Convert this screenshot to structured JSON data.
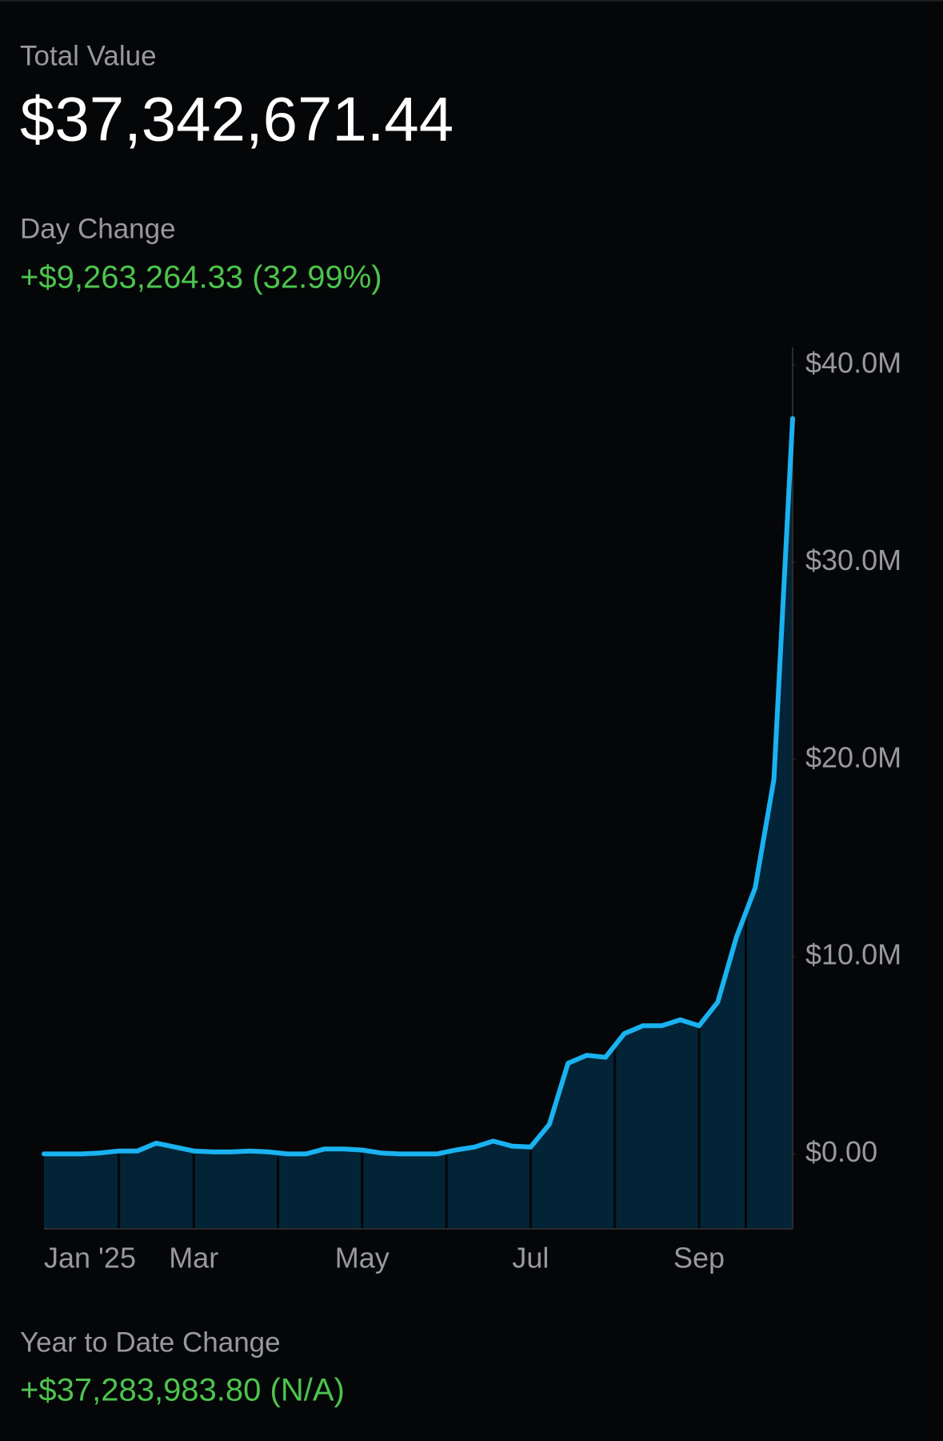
{
  "total_value": {
    "label": "Total Value",
    "value": "$37,342,671.44"
  },
  "day_change": {
    "label": "Day Change",
    "value": "+$9,263,264.33 (32.99%)"
  },
  "ytd_change": {
    "label": "Year to Date Change",
    "value": "+$37,283,983.80 (N/A)"
  },
  "chart_data": {
    "type": "line",
    "color": "#1ab2f0",
    "categories": [
      "Jan '25",
      null,
      null,
      null,
      null,
      null,
      null,
      null,
      "Mar",
      null,
      null,
      null,
      null,
      null,
      null,
      null,
      null,
      "May",
      null,
      null,
      null,
      null,
      null,
      null,
      null,
      null,
      "Jul",
      null,
      null,
      null,
      null,
      null,
      null,
      null,
      null,
      "Sep",
      null,
      null,
      null,
      null,
      null
    ],
    "values": [
      0,
      0,
      0,
      50000,
      150000,
      150000,
      550000,
      350000,
      150000,
      100000,
      100000,
      150000,
      100000,
      0,
      0,
      250000,
      250000,
      200000,
      50000,
      0,
      0,
      0,
      200000,
      350000,
      650000,
      400000,
      350000,
      1500000,
      4600000,
      5000000,
      4900000,
      6100000,
      6500000,
      6500000,
      6800000,
      6500000,
      7700000,
      11000000,
      13500000,
      19000000,
      37300000
    ],
    "ylim": [
      -3800000,
      40900000
    ],
    "yticks": [
      {
        "value": 0,
        "label": "$0.00"
      },
      {
        "value": 10000000,
        "label": "$10.0M"
      },
      {
        "value": 20000000,
        "label": "$20.0M"
      },
      {
        "value": 30000000,
        "label": "$30.0M"
      },
      {
        "value": 40000000,
        "label": "$40.0M"
      }
    ]
  }
}
